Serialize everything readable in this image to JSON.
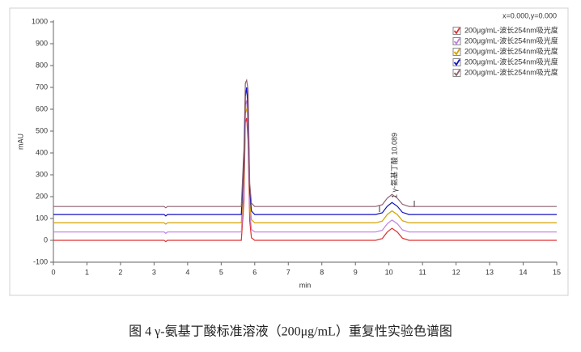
{
  "chart_data": {
    "type": "line",
    "caption": "图 4 γ-氨基丁酸标准溶液（200μg/mL）重复性实验色谱图",
    "cursor_readout": "x=0.000,y=0.000",
    "xlabel": "min",
    "ylabel": "mAU",
    "annotation": "1 γ-氨基丁酸 10.089",
    "xlim": [
      0,
      15
    ],
    "xticks": [
      0,
      1,
      2,
      3,
      4,
      5,
      6,
      7,
      8,
      9,
      10,
      11,
      12,
      13,
      14,
      15
    ],
    "ylim": [
      -100,
      1000
    ],
    "yticks": [
      -100,
      0,
      100,
      200,
      300,
      400,
      500,
      600,
      700,
      800,
      900,
      1000
    ],
    "grid": false,
    "legend": "upper right",
    "x": [
      0,
      3.3,
      3.35,
      3.4,
      5.6,
      5.68,
      5.72,
      5.76,
      5.8,
      5.85,
      5.9,
      6.0,
      9.6,
      9.8,
      9.95,
      10.09,
      10.25,
      10.4,
      10.6,
      15
    ],
    "series": [
      {
        "name": "200μg/mL-波长254nm吸光度",
        "color": "#e03030",
        "values": [
          0,
          0,
          -6,
          0,
          0,
          180,
          540,
          560,
          460,
          90,
          12,
          0,
          0,
          8,
          38,
          55,
          38,
          10,
          0,
          0
        ]
      },
      {
        "name": "200μg/mL-波长254nm吸光度",
        "color": "#c080e0",
        "values": [
          38,
          38,
          32,
          38,
          38,
          230,
          620,
          640,
          520,
          140,
          50,
          38,
          38,
          46,
          76,
          93,
          76,
          48,
          38,
          38
        ]
      },
      {
        "name": "200μg/mL-波长254nm吸光度",
        "color": "#d4a000",
        "values": [
          80,
          80,
          74,
          80,
          80,
          290,
          580,
          600,
          620,
          180,
          95,
          80,
          80,
          88,
          118,
          135,
          118,
          90,
          80,
          80
        ]
      },
      {
        "name": "200μg/mL-波长254nm吸光度",
        "color": "#1010c0",
        "values": [
          118,
          118,
          112,
          118,
          118,
          360,
          660,
          700,
          600,
          230,
          135,
          118,
          118,
          126,
          156,
          173,
          156,
          128,
          118,
          118
        ]
      },
      {
        "name": "200μg/mL-波长254nm吸光度",
        "color": "#906070",
        "values": [
          155,
          155,
          149,
          155,
          155,
          420,
          720,
          733,
          690,
          260,
          170,
          155,
          155,
          163,
          193,
          210,
          193,
          165,
          155,
          155
        ]
      }
    ]
  }
}
